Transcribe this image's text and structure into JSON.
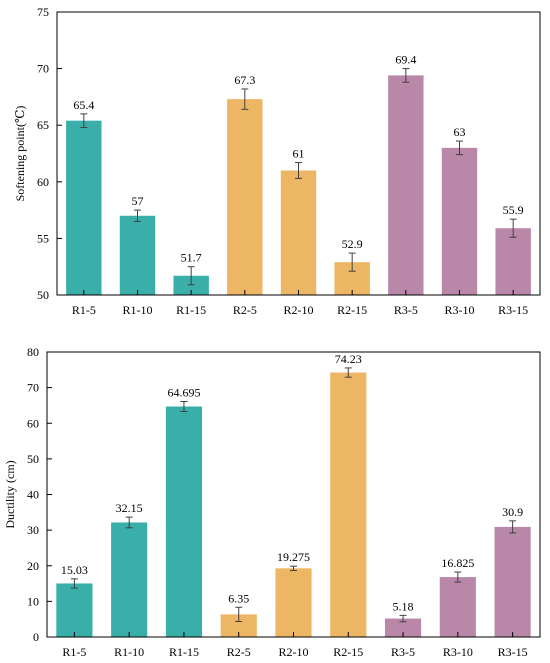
{
  "colors": {
    "R1": "#3aafaa",
    "R2": "#ecb664",
    "R3": "#b988a9",
    "axis": "#000000",
    "error_bar": "#404040"
  },
  "chart_data": [
    {
      "type": "bar",
      "title": "",
      "xlabel": "",
      "ylabel": "Softening point(℃)",
      "ylim": [
        50,
        75
      ],
      "yticks": [
        50,
        55,
        60,
        65,
        70,
        75
      ],
      "categories": [
        "R1-5",
        "R1-10",
        "R1-15",
        "R2-5",
        "R2-10",
        "R2-15",
        "R3-5",
        "R3-10",
        "R3-15"
      ],
      "values": [
        65.4,
        57,
        51.7,
        67.3,
        61,
        52.9,
        69.4,
        63,
        55.9
      ],
      "value_labels": [
        "65.4",
        "57",
        "51.7",
        "67.3",
        "61",
        "52.9",
        "69.4",
        "63",
        "55.9"
      ],
      "errors": [
        0.6,
        0.5,
        0.8,
        0.9,
        0.7,
        0.8,
        0.6,
        0.6,
        0.8
      ],
      "bar_groups": [
        "R1",
        "R1",
        "R1",
        "R2",
        "R2",
        "R2",
        "R3",
        "R3",
        "R3"
      ],
      "grid": false,
      "legend": false
    },
    {
      "type": "bar",
      "title": "",
      "xlabel": "",
      "ylabel": "Ductility (cm)",
      "ylim": [
        0,
        80
      ],
      "yticks": [
        0,
        10,
        20,
        30,
        40,
        50,
        60,
        70,
        80
      ],
      "categories": [
        "R1-5",
        "R1-10",
        "R1-15",
        "R2-5",
        "R2-10",
        "R2-15",
        "R3-5",
        "R3-10",
        "R3-15"
      ],
      "values": [
        15.03,
        32.15,
        64.695,
        6.35,
        19.275,
        74.23,
        5.18,
        16.825,
        30.9
      ],
      "value_labels": [
        "15.03",
        "32.15",
        "64.695",
        "6.35",
        "19.275",
        "74.23",
        "5.18",
        "16.825",
        "30.9"
      ],
      "errors": [
        1.3,
        1.5,
        1.4,
        2.0,
        0.6,
        1.3,
        0.9,
        1.4,
        1.7
      ],
      "bar_groups": [
        "R1",
        "R1",
        "R1",
        "R2",
        "R2",
        "R2",
        "R3",
        "R3",
        "R3"
      ],
      "grid": false,
      "legend": false
    }
  ]
}
